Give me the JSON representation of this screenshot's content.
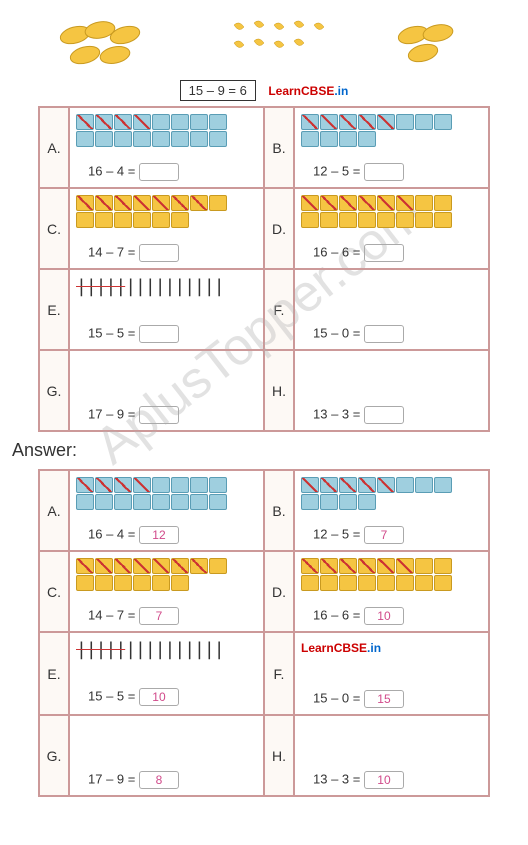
{
  "example": {
    "equation": "15 – 9 = 6"
  },
  "branding": {
    "text1": "Learn",
    "text2": "CBSE",
    "text3": ".in"
  },
  "watermark": "AplusTopper.com",
  "answerLabel": "Answer:",
  "worksheet1": {
    "rows": [
      {
        "l1": "A.",
        "p1": {
          "total": 16,
          "crossed": 4,
          "color": "blue",
          "eq": "16 – 4 =",
          "ans": ""
        },
        "l2": "B.",
        "p2": {
          "total": 12,
          "crossed": 5,
          "color": "blue",
          "eq": "12 – 5 =",
          "ans": ""
        }
      },
      {
        "l1": "C.",
        "p1": {
          "total": 14,
          "crossed": 7,
          "color": "yellow",
          "eq": "14 – 7 =",
          "ans": ""
        },
        "l2": "D.",
        "p2": {
          "total": 16,
          "crossed": 6,
          "color": "yellow",
          "eq": "16 – 6 =",
          "ans": ""
        }
      },
      {
        "l1": "E.",
        "p1": {
          "tally": true,
          "eq": "15 – 5 =",
          "ans": ""
        },
        "l2": "F.",
        "p2": {
          "eq": "15 – 0 =",
          "ans": ""
        }
      },
      {
        "l1": "G.",
        "p1": {
          "eq": "17 – 9 =",
          "ans": ""
        },
        "l2": "H.",
        "p2": {
          "eq": "13 – 3 =",
          "ans": ""
        }
      }
    ]
  },
  "worksheet2": {
    "rows": [
      {
        "l1": "A.",
        "p1": {
          "total": 16,
          "crossed": 4,
          "color": "blue",
          "eq": "16 – 4 =",
          "ans": "12"
        },
        "l2": "B.",
        "p2": {
          "total": 12,
          "crossed": 5,
          "color": "blue",
          "eq": "12 – 5 =",
          "ans": "7"
        }
      },
      {
        "l1": "C.",
        "p1": {
          "total": 14,
          "crossed": 7,
          "color": "yellow",
          "eq": "14 – 7 =",
          "ans": "7"
        },
        "l2": "D.",
        "p2": {
          "total": 16,
          "crossed": 6,
          "color": "yellow",
          "eq": "16 – 6 =",
          "ans": "10"
        }
      },
      {
        "l1": "E.",
        "p1": {
          "tally": true,
          "eq": "15 – 5 =",
          "ans": "10"
        },
        "l2": "F.",
        "p2": {
          "learn": true,
          "eq": "15 – 0 =",
          "ans": "15"
        }
      },
      {
        "l1": "G.",
        "p1": {
          "eq": "17 – 9 =",
          "ans": "8"
        },
        "l2": "H.",
        "p2": {
          "eq": "13 – 3 =",
          "ans": "10"
        }
      }
    ]
  }
}
